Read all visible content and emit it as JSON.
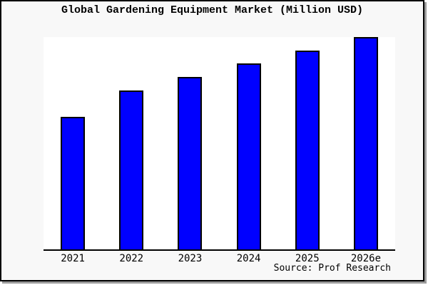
{
  "window": {
    "background_color": "#f8f8f8",
    "frame_border_color": "#000000",
    "frame_shadow_color": "#9b9b9b"
  },
  "chart_data": {
    "type": "bar",
    "title": "Global Gardening Equipment Market (Million USD)",
    "categories": [
      "2021",
      "2022",
      "2023",
      "2024",
      "2025",
      "2026e"
    ],
    "values": [
      10,
      12,
      13,
      14,
      15,
      16
    ],
    "value_scale_note": "y-axis has no tick labels or gridlines; values are relative bar heights in ratio 10:12:13:14:15:16",
    "ylim": [
      0,
      16
    ],
    "xlabel": "",
    "ylabel": "",
    "grid": false,
    "legend_position": "none",
    "bar_color": "#0000ff",
    "bar_border_color": "#000000",
    "plot_background": "#ffffff",
    "axis_line_color": "#000000",
    "source_note": "Source: Prof Research"
  }
}
